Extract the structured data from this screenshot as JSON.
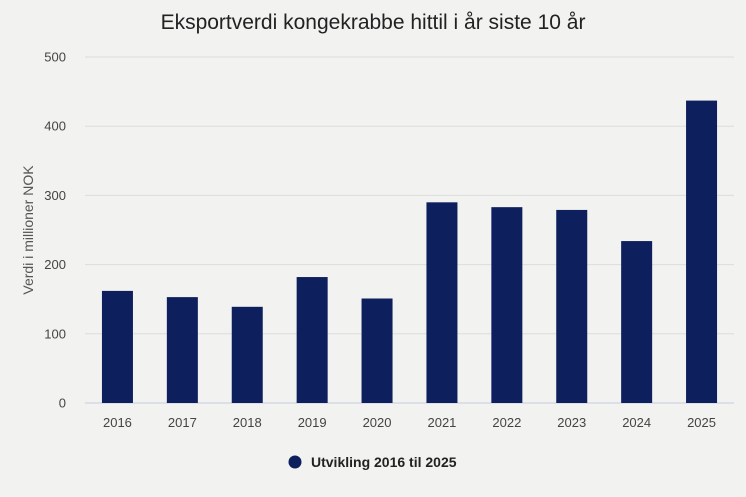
{
  "chart_data": {
    "type": "bar",
    "title": "Eksportverdi kongekrabbe hittil i år siste 10 år",
    "xlabel": "",
    "ylabel": "Verdi i millioner NOK",
    "categories": [
      "2016",
      "2017",
      "2018",
      "2019",
      "2020",
      "2021",
      "2022",
      "2023",
      "2024",
      "2025"
    ],
    "series": [
      {
        "name": "Utvikling 2016 til 2025",
        "values": [
          162,
          153,
          139,
          182,
          151,
          290,
          283,
          279,
          234,
          437
        ],
        "color": "#0d1f5c"
      }
    ],
    "ylim": [
      0,
      500
    ],
    "yticks": [
      "0",
      "100",
      "200",
      "300",
      "400",
      "500"
    ],
    "grid": true,
    "legend_position": "bottom"
  }
}
